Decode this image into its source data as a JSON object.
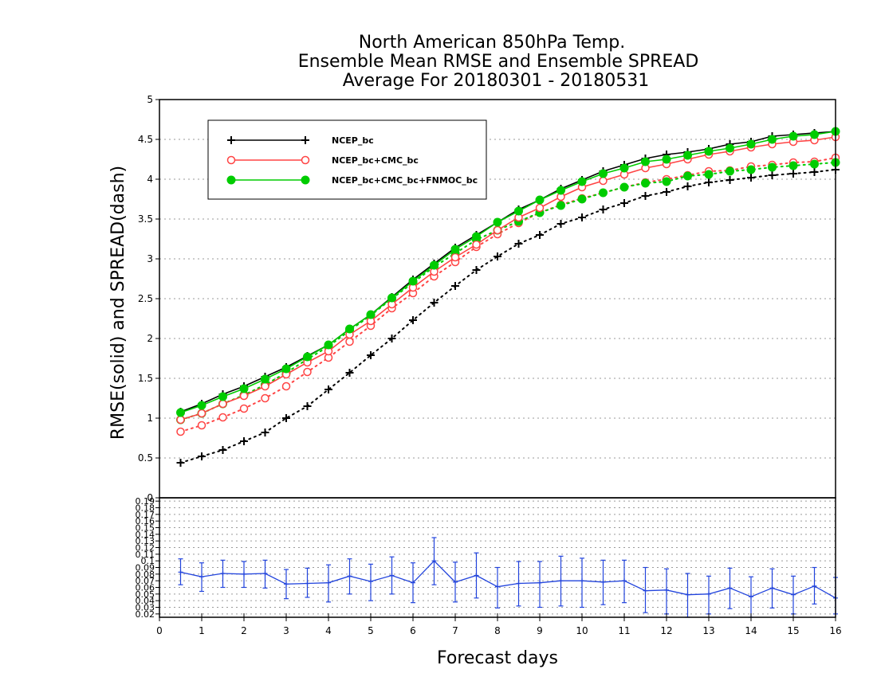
{
  "chart_data": [
    {
      "type": "line",
      "title": [
        "North American 850hPa Temp.",
        "Ensemble Mean RMSE and Ensemble SPREAD",
        "Average For 20180301 - 20180531"
      ],
      "xlabel": "Forecast days",
      "ylabel": "RMSE(solid) and SPREAD(dash)",
      "xlim": [
        0,
        16
      ],
      "ylim": [
        0,
        5
      ],
      "x_ticks": [
        "0",
        "1",
        "2",
        "3",
        "4",
        "5",
        "6",
        "7",
        "8",
        "9",
        "10",
        "11",
        "12",
        "13",
        "14",
        "15",
        "16"
      ],
      "y_ticks": [
        "0",
        "0.5",
        "1",
        "1.5",
        "2",
        "2.5",
        "3",
        "3.5",
        "4",
        "4.5",
        "5"
      ],
      "grid": true,
      "legend_position": "top-left",
      "x": [
        0.5,
        1,
        1.5,
        2,
        2.5,
        3,
        3.5,
        4,
        4.5,
        5,
        5.5,
        6,
        6.5,
        7,
        7.5,
        8,
        8.5,
        9,
        9.5,
        10,
        10.5,
        11,
        11.5,
        12,
        12.5,
        13,
        13.5,
        14,
        14.5,
        15,
        15.5,
        16
      ],
      "series": [
        {
          "name": "NCEP_bc",
          "color": "#000000",
          "marker": "plus",
          "rmse": [
            1.08,
            1.18,
            1.3,
            1.4,
            1.52,
            1.64,
            1.78,
            1.92,
            2.12,
            2.3,
            2.52,
            2.74,
            2.94,
            3.14,
            3.3,
            3.46,
            3.62,
            3.74,
            3.88,
            3.99,
            4.1,
            4.18,
            4.26,
            4.31,
            4.34,
            4.38,
            4.44,
            4.47,
            4.54,
            4.56,
            4.58,
            4.6
          ],
          "spread": [
            0.44,
            0.52,
            0.6,
            0.71,
            0.82,
            1.0,
            1.15,
            1.36,
            1.57,
            1.79,
            2.0,
            2.23,
            2.45,
            2.66,
            2.86,
            3.03,
            3.19,
            3.3,
            3.44,
            3.52,
            3.62,
            3.7,
            3.79,
            3.84,
            3.91,
            3.96,
            3.99,
            4.02,
            4.05,
            4.07,
            4.09,
            4.12
          ]
        },
        {
          "name": "NCEP_bc+CMC_bc",
          "color": "#ff4444",
          "marker": "open-circle",
          "rmse": [
            0.98,
            1.06,
            1.18,
            1.28,
            1.4,
            1.55,
            1.7,
            1.84,
            2.05,
            2.22,
            2.43,
            2.64,
            2.84,
            3.02,
            3.18,
            3.36,
            3.52,
            3.64,
            3.78,
            3.9,
            3.98,
            4.06,
            4.14,
            4.19,
            4.25,
            4.31,
            4.35,
            4.4,
            4.44,
            4.47,
            4.49,
            4.53
          ],
          "spread": [
            0.83,
            0.91,
            1.01,
            1.12,
            1.25,
            1.4,
            1.58,
            1.76,
            1.96,
            2.16,
            2.38,
            2.57,
            2.78,
            2.96,
            3.15,
            3.31,
            3.45,
            3.58,
            3.68,
            3.76,
            3.83,
            3.9,
            3.96,
            4.0,
            4.05,
            4.1,
            4.11,
            4.16,
            4.18,
            4.21,
            4.22,
            4.27
          ]
        },
        {
          "name": "NCEP_bc+CMC_bc+FNMOC_bc",
          "color": "#00cc00",
          "marker": "filled-circle",
          "rmse": [
            1.07,
            1.16,
            1.27,
            1.37,
            1.49,
            1.62,
            1.77,
            1.92,
            2.12,
            2.3,
            2.51,
            2.72,
            2.92,
            3.12,
            3.28,
            3.46,
            3.6,
            3.74,
            3.86,
            3.97,
            4.07,
            4.14,
            4.22,
            4.25,
            4.3,
            4.35,
            4.39,
            4.44,
            4.5,
            4.54,
            4.56,
            4.6
          ],
          "spread": [
            0.98,
            1.06,
            1.18,
            1.29,
            1.42,
            1.57,
            1.74,
            1.9,
            2.1,
            2.29,
            2.5,
            2.7,
            2.9,
            3.07,
            3.24,
            3.36,
            3.47,
            3.58,
            3.67,
            3.75,
            3.83,
            3.9,
            3.95,
            3.97,
            4.04,
            4.06,
            4.1,
            4.12,
            4.15,
            4.17,
            4.19,
            4.21
          ]
        }
      ]
    },
    {
      "type": "line",
      "xlabel": "Forecast days",
      "xlim": [
        0,
        16
      ],
      "ylim": [
        0.015,
        0.195
      ],
      "y_ticks": [
        "0.02",
        "0.03",
        "0.04",
        "0.05",
        "0.06",
        "0.07",
        "0.08",
        "0.09",
        "0.1",
        "0.11",
        "0.12",
        "0.13",
        "0.14",
        "0.15",
        "0.16",
        "0.17",
        "0.18",
        "0.19"
      ],
      "grid": true,
      "series": [
        {
          "color": "#2244dd",
          "marker": "error-bar",
          "x": [
            0.5,
            1,
            1.5,
            2,
            2.5,
            3,
            3.5,
            4,
            4.5,
            5,
            5.5,
            6,
            6.5,
            7,
            7.5,
            8,
            8.5,
            9,
            9.5,
            10,
            10.5,
            11,
            11.5,
            12,
            12.5,
            13,
            13.5,
            14,
            14.5,
            15,
            15.5,
            16
          ],
          "values": [
            0.083,
            0.076,
            0.081,
            0.08,
            0.081,
            0.065,
            0.066,
            0.067,
            0.077,
            0.069,
            0.078,
            0.067,
            0.1,
            0.068,
            0.078,
            0.061,
            0.066,
            0.067,
            0.07,
            0.07,
            0.068,
            0.07,
            0.055,
            0.056,
            0.049,
            0.05,
            0.059,
            0.046,
            0.059,
            0.049,
            0.062,
            0.044
          ],
          "err_low": [
            0.064,
            0.054,
            0.06,
            0.06,
            0.059,
            0.043,
            0.045,
            0.038,
            0.05,
            0.04,
            0.05,
            0.037,
            0.064,
            0.038,
            0.044,
            0.029,
            0.032,
            0.03,
            0.032,
            0.03,
            0.034,
            0.037,
            0.022,
            0.02,
            0.015,
            0.02,
            0.028,
            0.015,
            0.029,
            0.02,
            0.035,
            0.02
          ],
          "err_high": [
            0.103,
            0.097,
            0.101,
            0.099,
            0.101,
            0.087,
            0.089,
            0.094,
            0.103,
            0.095,
            0.106,
            0.097,
            0.135,
            0.098,
            0.112,
            0.09,
            0.099,
            0.099,
            0.107,
            0.104,
            0.101,
            0.101,
            0.09,
            0.088,
            0.081,
            0.077,
            0.089,
            0.076,
            0.088,
            0.077,
            0.09,
            0.075
          ]
        }
      ]
    }
  ]
}
